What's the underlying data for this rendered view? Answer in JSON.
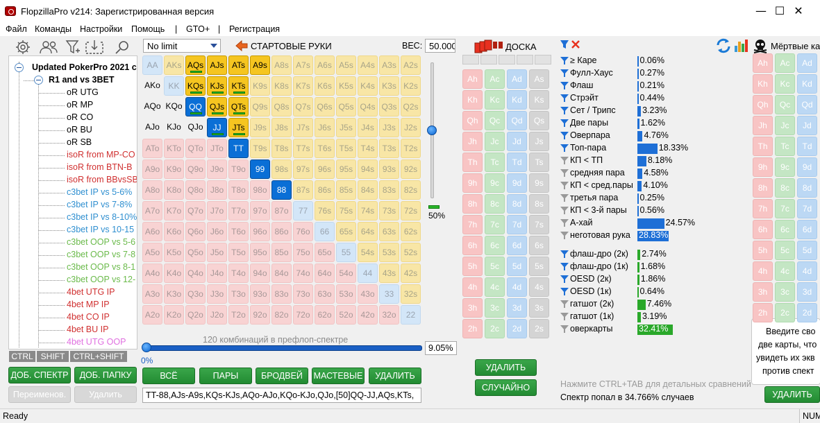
{
  "window": {
    "title": "FlopzillaPro v214: Зарегистрированная версия",
    "min": "—",
    "max": "☐",
    "close": "✕"
  },
  "menu": [
    "Файл",
    "Команды",
    "Настройки",
    "Помощь",
    "|",
    "GTO+",
    "|",
    "Регистрация"
  ],
  "tree": {
    "root": "Updated PokerPro 2021 c",
    "group": "R1 and vs 3BET",
    "items": [
      {
        "label": "oR UTG",
        "color": "#000000"
      },
      {
        "label": "oR MP",
        "color": "#000000"
      },
      {
        "label": "oR CO",
        "color": "#000000"
      },
      {
        "label": "oR BU",
        "color": "#000000"
      },
      {
        "label": "oR SB",
        "color": "#000000"
      },
      {
        "label": "isoR from MP-CO",
        "color": "#d03030"
      },
      {
        "label": "isoR from BTN-B",
        "color": "#d03030"
      },
      {
        "label": "isoR from BBvsSB",
        "color": "#d03030"
      },
      {
        "label": "c3bet IP vs 5-6%",
        "color": "#2f8fd0"
      },
      {
        "label": "c3bet IP vs 7-8%",
        "color": "#2f8fd0"
      },
      {
        "label": "c3bet IP vs 8-10%",
        "color": "#2f8fd0"
      },
      {
        "label": "c3bet IP vs 10-15",
        "color": "#2f8fd0"
      },
      {
        "label": "c3bet OOP vs 5-6",
        "color": "#6aba4a"
      },
      {
        "label": "c3bet OOP vs 7-8",
        "color": "#6aba4a"
      },
      {
        "label": "c3bet OOP vs 8-1",
        "color": "#6aba4a"
      },
      {
        "label": "c3bet OOP vs 12-",
        "color": "#6aba4a"
      },
      {
        "label": "4bet UTG IP",
        "color": "#d03030"
      },
      {
        "label": "4bet MP IP",
        "color": "#d03030"
      },
      {
        "label": "4bet CO IP",
        "color": "#d03030"
      },
      {
        "label": "4bet BU IP",
        "color": "#d03030"
      },
      {
        "label": "4bet UTG OOP",
        "color": "#e070e0"
      }
    ],
    "tabs": [
      "CTRL",
      "SHIFT",
      "CTRL+SHIFT"
    ]
  },
  "left_buttons": {
    "add_range": "ДОБ. СПЕКТР",
    "add_folder": "ДОБ. ПАПКУ",
    "rename": "Переименов.",
    "delete": "Удалить"
  },
  "range": {
    "dropdown": "No limit",
    "title": "СТАРТОВЫЕ РУКИ",
    "weight_label": "ВЕС:",
    "weight_value": "50.000",
    "slider_pct": "50%",
    "combos_text": "120 комбинаций в префлоп-спектре",
    "bottom_pct_left": "0%",
    "percent": "9.05%",
    "buttons": {
      "all": "ВСЁ",
      "pairs": "ПАРЫ",
      "broadway": "БРОДВЕЙ",
      "suited": "МАСТЕВЫЕ",
      "delete": "УДАЛИТЬ"
    },
    "text": "TT-88,AJs-A9s,KQs-KJs,AQo-AJo,KQo-KJo,QJo,[50]QQ-JJ,AQs,KTs,",
    "ranks": [
      "A",
      "K",
      "Q",
      "J",
      "T",
      "9",
      "8",
      "7",
      "6",
      "5",
      "4",
      "3",
      "2"
    ],
    "selected": [
      "AQs",
      "AJs",
      "ATs",
      "A9s",
      "AKo",
      "KQs",
      "KJs",
      "KTs",
      "AQo",
      "KQo",
      "QQ",
      "QJs",
      "QTs",
      "AJo",
      "KJo",
      "QJo",
      "JJ",
      "JTs",
      "TT",
      "99",
      "88"
    ],
    "half": [
      "AQs",
      "KQs",
      "KJs",
      "KTs",
      "QQ",
      "QJs",
      "QTs",
      "JJ",
      "JTs"
    ],
    "slider_level": 0.5
  },
  "board": {
    "title": "ДОСКА",
    "delete": "УДАЛИТЬ",
    "random": "СЛУЧАЙНО",
    "ranks": [
      "A",
      "K",
      "Q",
      "J",
      "T",
      "9",
      "8",
      "7",
      "6",
      "5",
      "4",
      "3",
      "2"
    ],
    "suits": [
      "h",
      "c",
      "d",
      "s"
    ]
  },
  "stats": {
    "hands": [
      {
        "label": "≥ Каре",
        "value": "0.06%",
        "pct": 0.06,
        "funnel": "blue"
      },
      {
        "label": "Фулл-Хаус",
        "value": "0.27%",
        "pct": 0.27,
        "funnel": "blue"
      },
      {
        "label": "Флаш",
        "value": "0.21%",
        "pct": 0.21,
        "funnel": "blue"
      },
      {
        "label": "Стрэйт",
        "value": "0.44%",
        "pct": 0.44,
        "funnel": "blue"
      },
      {
        "label": "Сет / Трипс",
        "value": "3.23%",
        "pct": 3.23,
        "funnel": "blue"
      },
      {
        "label": "Две пары",
        "value": "1.62%",
        "pct": 1.62,
        "funnel": "blue"
      },
      {
        "label": "Оверпара",
        "value": "4.76%",
        "pct": 4.76,
        "funnel": "blue"
      },
      {
        "label": "Топ-пара",
        "value": "18.33%",
        "pct": 18.33,
        "funnel": "blue"
      },
      {
        "label": "КП < ТП",
        "value": "8.18%",
        "pct": 8.18,
        "funnel": "grey"
      },
      {
        "label": "средняя пара",
        "value": "4.58%",
        "pct": 4.58,
        "funnel": "grey"
      },
      {
        "label": "КП < сред.пары",
        "value": "4.10%",
        "pct": 4.1,
        "funnel": "grey"
      },
      {
        "label": "третья пара",
        "value": "0.25%",
        "pct": 0.25,
        "funnel": "grey"
      },
      {
        "label": "КП < 3-й пары",
        "value": "0.56%",
        "pct": 0.56,
        "funnel": "grey"
      },
      {
        "label": "А-хай",
        "value": "24.57%",
        "pct": 24.57,
        "funnel": "grey"
      },
      {
        "label": "неготовая рука",
        "value": "28.83%",
        "pct": 28.83,
        "funnel": "grey"
      }
    ],
    "draws": [
      {
        "label": "флаш-дро (2к)",
        "value": "2.74%",
        "pct": 2.74,
        "funnel": "blue"
      },
      {
        "label": "флаш-дро (1к)",
        "value": "1.68%",
        "pct": 1.68,
        "funnel": "blue"
      },
      {
        "label": "OESD (2к)",
        "value": "1.86%",
        "pct": 1.86,
        "funnel": "blue"
      },
      {
        "label": "OESD (1к)",
        "value": "0.64%",
        "pct": 0.64,
        "funnel": "blue"
      },
      {
        "label": "гатшот (2к)",
        "value": "7.46%",
        "pct": 7.46,
        "funnel": "grey"
      },
      {
        "label": "гатшот (1к)",
        "value": "3.19%",
        "pct": 3.19,
        "funnel": "grey"
      },
      {
        "label": "оверкарты",
        "value": "32.41%",
        "pct": 32.41,
        "funnel": "grey"
      }
    ],
    "hint": "Нажмите CTRL+TAB для детальных сравнений",
    "result": "Спектр попал в 34.766% случаев"
  },
  "dead": {
    "title": "Мёртвые ка",
    "tooltip": [
      "Введите сво",
      "две карты, что",
      "увидеть их экв",
      "против спект"
    ],
    "delete": "УДАЛИТЬ"
  },
  "status": {
    "left": "Ready",
    "right": "NUM"
  },
  "colors": {
    "blue_bar": "#1e6fd6",
    "green_bar": "#2aa82a",
    "green_button": "#2a9a3a"
  }
}
